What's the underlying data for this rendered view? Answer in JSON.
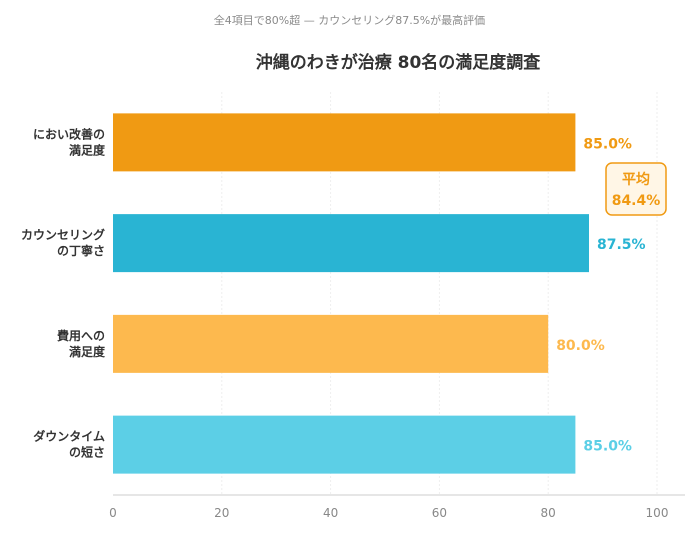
{
  "chart_data": {
    "type": "bar",
    "orientation": "horizontal",
    "subtitle": "全4項目で80%超 — カウンセリング87.5%が最高評価",
    "title": "沖縄のわきが治療 80名の満足度調査",
    "xlabel": "",
    "ylabel": "",
    "xlim": [
      0,
      100
    ],
    "x_ticks": [
      "0",
      "20",
      "40",
      "60",
      "80",
      "100"
    ],
    "grid": "vertical",
    "categories": [
      [
        "におい改善の",
        "満足度"
      ],
      [
        "カウンセリング",
        "の丁寧さ"
      ],
      [
        "費用への",
        "満足度"
      ],
      [
        "ダウンタイム",
        "の短さ"
      ]
    ],
    "values": [
      85.0,
      87.5,
      80.0,
      85.0
    ],
    "value_labels": [
      "85.0%",
      "87.5%",
      "80.0%",
      "85.0%"
    ],
    "colors": [
      "#f09a13",
      "#29b4d3",
      "#fdb94e",
      "#5ccfe6"
    ],
    "annotation": {
      "label": "平均",
      "value_label": "84.4%",
      "color": "#f09a13",
      "background": "#fff6e6"
    }
  }
}
